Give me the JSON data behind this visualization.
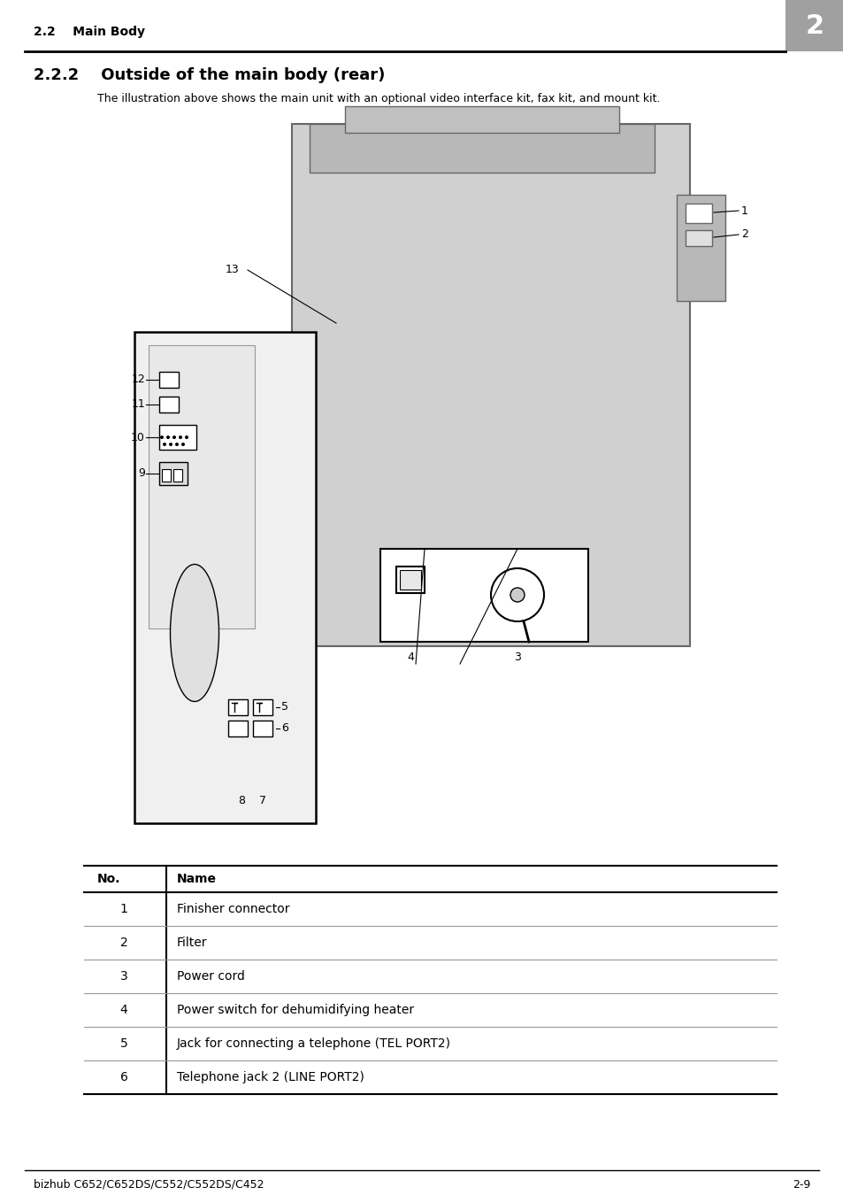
{
  "header_section": "2.2    Main Body",
  "header_number": "2",
  "section_title": "2.2.2    Outside of the main body (rear)",
  "section_subtitle": "The illustration above shows the main unit with an optional video interface kit, fax kit, and mount kit.",
  "footer_left": "bizhub C652/C652DS/C552/C552DS/C452",
  "footer_right": "2-9",
  "table_headers": [
    "No.",
    "Name"
  ],
  "table_rows": [
    [
      "1",
      "Finisher connector"
    ],
    [
      "2",
      "Filter"
    ],
    [
      "3",
      "Power cord"
    ],
    [
      "4",
      "Power switch for dehumidifying heater"
    ],
    [
      "5",
      "Jack for connecting a telephone (TEL PORT2)"
    ],
    [
      "6",
      "Telephone jack 2 (LINE PORT2)"
    ]
  ],
  "bg_color": "#ffffff",
  "text_color": "#000000",
  "line_color": "#000000",
  "page_width": 9.54,
  "page_height": 13.5
}
